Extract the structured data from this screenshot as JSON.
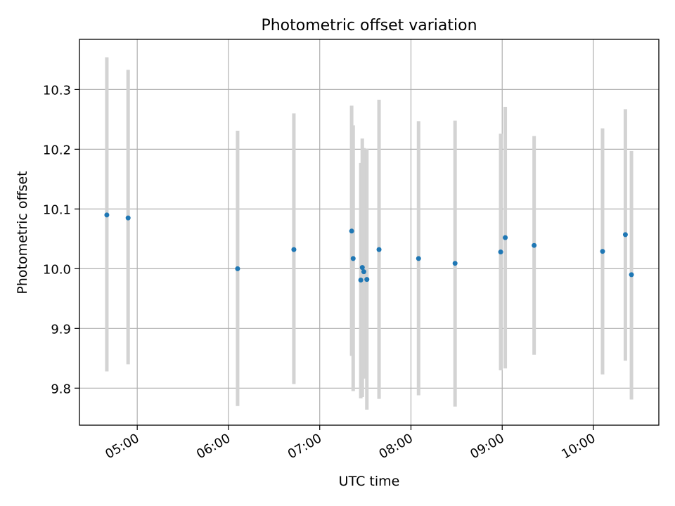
{
  "chart_data": {
    "type": "scatter",
    "title": "Photometric offset variation",
    "xlabel": "UTC time",
    "ylabel": "Photometric offset",
    "grid": true,
    "legend": "none",
    "xlim": [
      "04:22:00",
      "10:43:00"
    ],
    "ylim": [
      9.738,
      10.384
    ],
    "x_ticks": [
      "05:00",
      "06:00",
      "07:00",
      "08:00",
      "09:00",
      "10:00"
    ],
    "y_ticks": [
      "9.8",
      "9.9",
      "10.0",
      "10.1",
      "10.2",
      "10.3"
    ],
    "marker_color": "#1f77b4",
    "errorbar_color": "#d3d3d3",
    "series": [
      {
        "points": [
          {
            "time": "04:40:00",
            "y": 10.09,
            "ylow": 9.828,
            "yhigh": 10.354
          },
          {
            "time": "04:54:00",
            "y": 10.085,
            "ylow": 9.84,
            "yhigh": 10.333
          },
          {
            "time": "06:06:00",
            "y": 10.0,
            "ylow": 9.77,
            "yhigh": 10.231
          },
          {
            "time": "06:43:00",
            "y": 10.032,
            "ylow": 9.807,
            "yhigh": 10.26
          },
          {
            "time": "07:21:00",
            "y": 10.063,
            "ylow": 9.854,
            "yhigh": 10.273
          },
          {
            "time": "07:22:00",
            "y": 10.017,
            "ylow": 9.795,
            "yhigh": 10.24
          },
          {
            "time": "07:27:00",
            "y": 9.981,
            "ylow": 9.783,
            "yhigh": 10.177
          },
          {
            "time": "07:28:00",
            "y": 10.002,
            "ylow": 9.785,
            "yhigh": 10.218
          },
          {
            "time": "07:29:00",
            "y": 9.995,
            "ylow": 9.816,
            "yhigh": 10.202
          },
          {
            "time": "07:31:00",
            "y": 9.982,
            "ylow": 9.764,
            "yhigh": 10.201
          },
          {
            "time": "07:39:00",
            "y": 10.032,
            "ylow": 9.782,
            "yhigh": 10.283
          },
          {
            "time": "08:05:00",
            "y": 10.017,
            "ylow": 9.788,
            "yhigh": 10.247
          },
          {
            "time": "08:29:00",
            "y": 10.009,
            "ylow": 9.769,
            "yhigh": 10.248
          },
          {
            "time": "08:59:00",
            "y": 10.028,
            "ylow": 9.83,
            "yhigh": 10.226
          },
          {
            "time": "09:02:00",
            "y": 10.052,
            "ylow": 9.833,
            "yhigh": 10.271
          },
          {
            "time": "09:21:00",
            "y": 10.039,
            "ylow": 9.856,
            "yhigh": 10.222
          },
          {
            "time": "10:06:00",
            "y": 10.029,
            "ylow": 9.823,
            "yhigh": 10.235
          },
          {
            "time": "10:21:00",
            "y": 10.057,
            "ylow": 9.846,
            "yhigh": 10.267
          },
          {
            "time": "10:25:00",
            "y": 9.99,
            "ylow": 9.781,
            "yhigh": 10.197
          }
        ]
      }
    ]
  }
}
